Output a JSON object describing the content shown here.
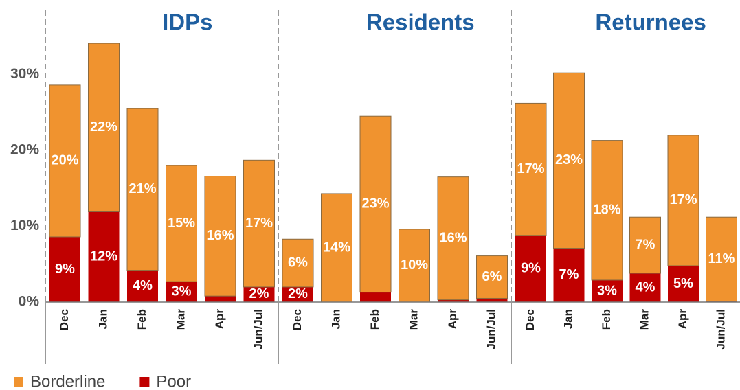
{
  "chart_data": {
    "type": "bar",
    "stacked": true,
    "categories": [
      "Dec",
      "Jan",
      "Feb",
      "Mar",
      "Apr",
      "Jun/Jul"
    ],
    "ylim": [
      0,
      38
    ],
    "yticks": [
      {
        "value": 0,
        "label": "0%"
      },
      {
        "value": 10,
        "label": "10%"
      },
      {
        "value": 20,
        "label": "20%"
      },
      {
        "value": 30,
        "label": "30%"
      }
    ],
    "legend": "bottom-left",
    "series": [
      {
        "name": "Borderline",
        "color": "#f0932f"
      },
      {
        "name": "Poor",
        "color": "#c00000"
      }
    ],
    "panels": [
      {
        "title": "IDPs",
        "series": [
          {
            "values": [
              20.0,
              22.2,
              21.3,
              15.3,
              15.8,
              16.7
            ],
            "value_labels": [
              "20%",
              "22%",
              "21%",
              "15%",
              "16%",
              "17%"
            ]
          },
          {
            "values": [
              8.6,
              11.9,
              4.2,
              2.7,
              0.8,
              2.0
            ],
            "value_labels": [
              "9%",
              "12%",
              "4%",
              "3%",
              null,
              "2%"
            ]
          }
        ]
      },
      {
        "title": "Residents",
        "series": [
          {
            "values": [
              6.3,
              14.3,
              23.2,
              9.6,
              16.2,
              5.6
            ],
            "value_labels": [
              "6%",
              "14%",
              "23%",
              "10%",
              "16%",
              "6%"
            ]
          },
          {
            "values": [
              2.0,
              0,
              1.3,
              0,
              0.3,
              0.5
            ],
            "value_labels": [
              "2%",
              null,
              null,
              null,
              null,
              null
            ]
          }
        ]
      },
      {
        "title": "Returnees",
        "series": [
          {
            "values": [
              17.4,
              23.1,
              18.4,
              7.4,
              17.2,
              11.1
            ],
            "value_labels": [
              "17%",
              "23%",
              "18%",
              "7%",
              "17%",
              "11%"
            ]
          },
          {
            "values": [
              8.8,
              7.1,
              2.9,
              3.8,
              4.8,
              0.1
            ],
            "value_labels": [
              "9%",
              "7%",
              "3%",
              "4%",
              "5%",
              null
            ]
          }
        ]
      }
    ]
  }
}
